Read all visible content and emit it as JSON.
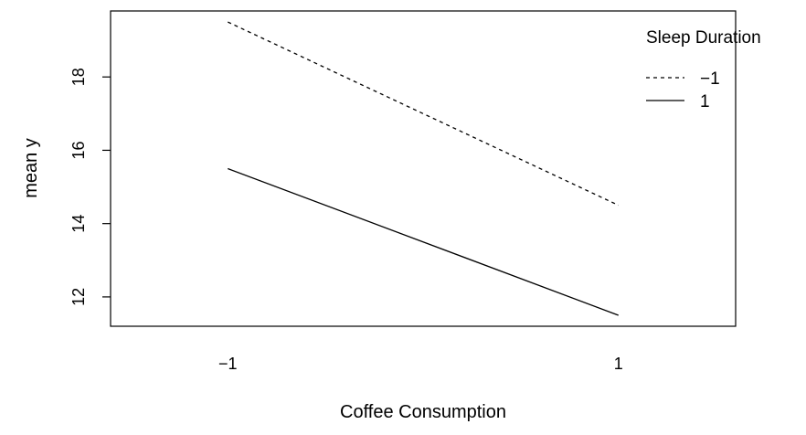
{
  "chart_data": {
    "type": "line",
    "title": "",
    "xlabel": "Coffee Consumption",
    "ylabel": "mean y",
    "categories": [
      "−1",
      "1"
    ],
    "x": [
      -1,
      1
    ],
    "xlim": [
      -1.6,
      1.6
    ],
    "ylim": [
      11.2,
      19.8
    ],
    "yticks": [
      12,
      14,
      16,
      18
    ],
    "grid": false,
    "legend": {
      "title": "Sleep Duration",
      "placement": "top-right"
    },
    "series": [
      {
        "name": "−1",
        "values": [
          19.5,
          14.5
        ],
        "line_style": "dashed",
        "color": "#000000"
      },
      {
        "name": "1",
        "values": [
          15.5,
          11.5
        ],
        "line_style": "solid",
        "color": "#000000"
      }
    ]
  }
}
